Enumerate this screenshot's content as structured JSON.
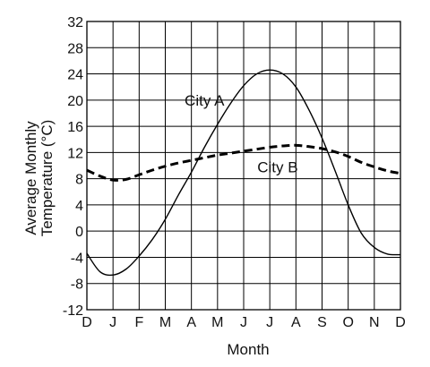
{
  "chart_data": {
    "type": "line",
    "title": "",
    "xlabel": "Month",
    "ylabel_lines": [
      "Average Monthly",
      "Temperature (°C)"
    ],
    "categories": [
      "D",
      "J",
      "F",
      "M",
      "A",
      "M",
      "J",
      "J",
      "A",
      "S",
      "O",
      "N",
      "D"
    ],
    "ylim": [
      -12,
      32
    ],
    "y_ticks": [
      32,
      28,
      24,
      20,
      16,
      12,
      8,
      4,
      0,
      -4,
      -8,
      -12
    ],
    "grid": true,
    "legend": "none (series labeled on plot)",
    "series": [
      {
        "name": "City A",
        "style": "solid",
        "color": "#000000",
        "x": [
          0,
          0.5,
          1,
          1.5,
          2,
          2.5,
          3,
          3.5,
          4,
          4.5,
          5,
          5.5,
          6,
          6.5,
          7,
          7.5,
          8,
          8.5,
          9,
          9.5,
          10,
          10.5,
          11,
          11.5,
          12
        ],
        "values": [
          -3.4,
          -6.2,
          -6.7,
          -5.8,
          -3.8,
          -1.3,
          1.8,
          5.5,
          9.0,
          12.8,
          16.3,
          19.5,
          22.2,
          24.0,
          24.6,
          24.0,
          22.0,
          18.5,
          14.2,
          9.2,
          4.0,
          -0.3,
          -2.5,
          -3.5,
          -3.6
        ]
      },
      {
        "name": "City B",
        "style": "dashed",
        "color": "#000000",
        "x": [
          0,
          0.5,
          1,
          1.5,
          2,
          2.5,
          3,
          3.5,
          4,
          4.5,
          5,
          5.5,
          6,
          6.5,
          7,
          7.5,
          8,
          8.5,
          9,
          9.5,
          10,
          10.5,
          11,
          11.5,
          12
        ],
        "values": [
          9.3,
          8.4,
          7.8,
          7.9,
          8.6,
          9.3,
          9.9,
          10.4,
          10.8,
          11.2,
          11.6,
          11.9,
          12.2,
          12.5,
          12.8,
          13.0,
          13.1,
          12.9,
          12.6,
          12.1,
          11.4,
          10.5,
          9.8,
          9.2,
          8.8
        ]
      }
    ],
    "annotations": [
      {
        "text": "City A",
        "x": 4.5,
        "y": 20
      },
      {
        "text": "City B",
        "x": 7.3,
        "y": 9.8
      }
    ]
  }
}
